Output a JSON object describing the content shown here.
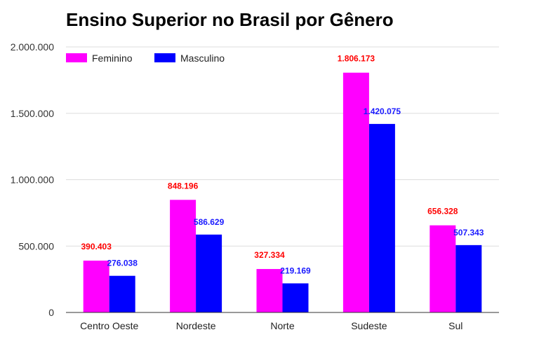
{
  "chart_data": {
    "type": "bar",
    "title": "Ensino Superior no Brasil por Gênero",
    "xlabel": "",
    "ylabel": "",
    "categories": [
      "Centro Oeste",
      "Nordeste",
      "Norte",
      "Sudeste",
      "Sul"
    ],
    "series": [
      {
        "name": "Feminino",
        "color": "#ff00ff",
        "label_color": "#ff0000",
        "values": [
          390403,
          848196,
          327334,
          1806173,
          656328
        ],
        "labels": [
          "390.403",
          "848.196",
          "327.334",
          "1.806.173",
          "656.328"
        ]
      },
      {
        "name": "Masculino",
        "color": "#0000ff",
        "label_color": "#1a1aff",
        "values": [
          276038,
          586629,
          219169,
          1420075,
          507343
        ],
        "labels": [
          "276.038",
          "586.629",
          "219.169",
          "1.420.075",
          "507.343"
        ]
      }
    ],
    "ylim": [
      0,
      2000000
    ],
    "yticks": [
      0,
      500000,
      1000000,
      1500000,
      2000000
    ],
    "ytick_labels": [
      "0",
      "500.000",
      "1.000.000",
      "1.500.000",
      "2.000.000"
    ],
    "grid": true,
    "legend": "top-left"
  }
}
